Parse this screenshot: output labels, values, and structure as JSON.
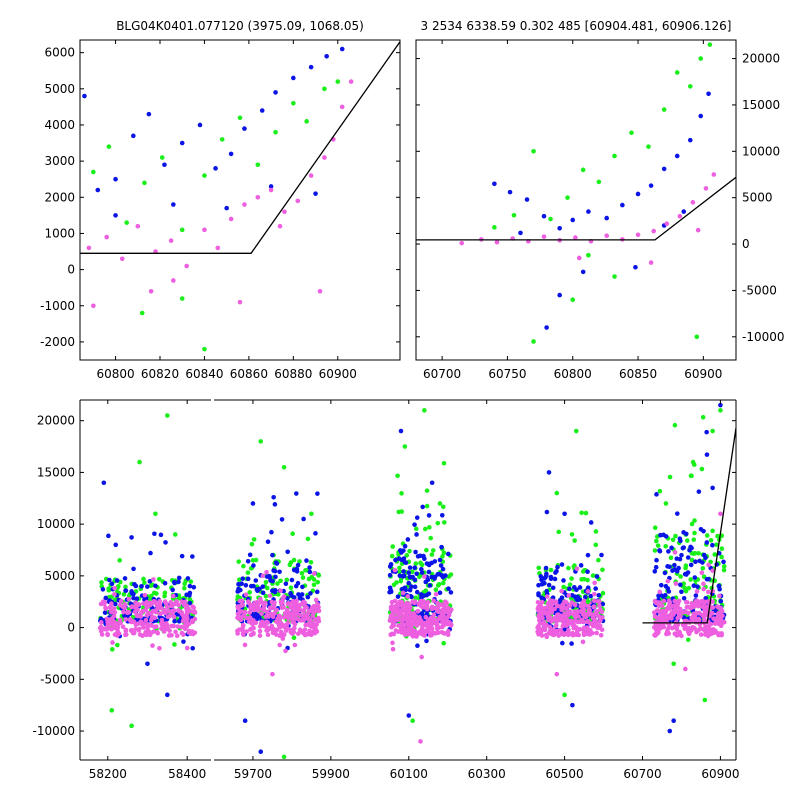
{
  "figure": {
    "title_left": "BLG04K0401.077120 (3975.09, 1068.05)",
    "title_right": "3 2534 6338.59 0.302 485 [60904.481, 60906.126]"
  },
  "colors": {
    "blue": "#0a14e6",
    "green": "#19f019",
    "magenta": "#ee5fe0"
  },
  "chart_data": [
    {
      "name": "top-left",
      "type": "scatter",
      "xlim": [
        60784,
        60928
      ],
      "ylim": [
        -2500,
        6350
      ],
      "xticks": [
        60800,
        60820,
        60840,
        60860,
        60880,
        60900
      ],
      "yticks": [
        -2000,
        -1000,
        0,
        1000,
        2000,
        3000,
        4000,
        5000,
        6000
      ],
      "y_axis_side": "left",
      "model_line": [
        [
          60784,
          450
        ],
        [
          60861,
          450
        ],
        [
          60928,
          6300
        ]
      ],
      "series": [
        {
          "name": "blue",
          "color": "#0a14e6",
          "points": [
            [
              60786,
              4800
            ],
            [
              60792,
              2200
            ],
            [
              60800,
              2500
            ],
            [
              60808,
              3700
            ],
            [
              60815,
              4300
            ],
            [
              60822,
              2900
            ],
            [
              60830,
              3500
            ],
            [
              60838,
              4000
            ],
            [
              60845,
              2800
            ],
            [
              60852,
              3200
            ],
            [
              60858,
              3900
            ],
            [
              60866,
              4400
            ],
            [
              60872,
              4900
            ],
            [
              60880,
              5300
            ],
            [
              60888,
              5600
            ],
            [
              60895,
              5900
            ],
            [
              60902,
              6100
            ],
            [
              60800,
              1500
            ],
            [
              60826,
              1800
            ],
            [
              60850,
              1700
            ],
            [
              60870,
              2300
            ],
            [
              60890,
              2100
            ]
          ]
        },
        {
          "name": "green",
          "color": "#19f019",
          "points": [
            [
              60790,
              2700
            ],
            [
              60797,
              3400
            ],
            [
              60805,
              1300
            ],
            [
              60813,
              2400
            ],
            [
              60821,
              3100
            ],
            [
              60830,
              1100
            ],
            [
              60840,
              2600
            ],
            [
              60848,
              3600
            ],
            [
              60856,
              4200
            ],
            [
              60864,
              2900
            ],
            [
              60872,
              3800
            ],
            [
              60880,
              4600
            ],
            [
              60886,
              4100
            ],
            [
              60894,
              5000
            ],
            [
              60900,
              5200
            ],
            [
              60840,
              -2200
            ],
            [
              60812,
              -1200
            ],
            [
              60830,
              -800
            ]
          ]
        },
        {
          "name": "magenta",
          "color": "#ee5fe0",
          "points": [
            [
              60788,
              600
            ],
            [
              60796,
              900
            ],
            [
              60803,
              300
            ],
            [
              60810,
              1200
            ],
            [
              60818,
              500
            ],
            [
              60825,
              800
            ],
            [
              60832,
              100
            ],
            [
              60840,
              1100
            ],
            [
              60846,
              600
            ],
            [
              60852,
              1400
            ],
            [
              60858,
              1800
            ],
            [
              60864,
              2000
            ],
            [
              60870,
              2200
            ],
            [
              60876,
              1600
            ],
            [
              60882,
              1900
            ],
            [
              60888,
              2600
            ],
            [
              60894,
              3100
            ],
            [
              60898,
              3600
            ],
            [
              60902,
              4500
            ],
            [
              60906,
              5200
            ],
            [
              60790,
              -1000
            ],
            [
              60816,
              -600
            ],
            [
              60856,
              -900
            ],
            [
              60892,
              -600
            ],
            [
              60826,
              -300
            ],
            [
              60874,
              1200
            ]
          ]
        }
      ]
    },
    {
      "name": "top-right",
      "type": "scatter",
      "xlim": [
        60680,
        60925
      ],
      "ylim": [
        -12500,
        22000
      ],
      "xticks": [
        60700,
        60750,
        60800,
        60850,
        60900
      ],
      "yticks": [
        -10000,
        -5000,
        0,
        5000,
        10000,
        15000,
        20000
      ],
      "y_axis_side": "right",
      "model_line": [
        [
          60680,
          450
        ],
        [
          60863,
          450
        ],
        [
          60925,
          7200
        ]
      ],
      "series": [
        {
          "name": "blue",
          "color": "#0a14e6",
          "points": [
            [
              60740,
              6500
            ],
            [
              60752,
              5600
            ],
            [
              60765,
              4800
            ],
            [
              60778,
              3000
            ],
            [
              60790,
              1700
            ],
            [
              60800,
              2600
            ],
            [
              60812,
              3500
            ],
            [
              60826,
              2800
            ],
            [
              60838,
              4200
            ],
            [
              60850,
              5400
            ],
            [
              60860,
              6300
            ],
            [
              60870,
              8100
            ],
            [
              60880,
              9500
            ],
            [
              60890,
              11200
            ],
            [
              60898,
              13800
            ],
            [
              60904,
              16200
            ],
            [
              60780,
              -9000
            ],
            [
              60790,
              -5500
            ],
            [
              60808,
              -3000
            ],
            [
              60848,
              -2500
            ],
            [
              60870,
              2000
            ],
            [
              60885,
              3500
            ],
            [
              60760,
              1200
            ]
          ]
        },
        {
          "name": "green",
          "color": "#19f019",
          "points": [
            [
              60740,
              1800
            ],
            [
              60755,
              3100
            ],
            [
              60770,
              10000
            ],
            [
              60783,
              2700
            ],
            [
              60796,
              5000
            ],
            [
              60808,
              8000
            ],
            [
              60820,
              6700
            ],
            [
              60832,
              9500
            ],
            [
              60845,
              12000
            ],
            [
              60858,
              10500
            ],
            [
              60870,
              14500
            ],
            [
              60880,
              18500
            ],
            [
              60890,
              17000
            ],
            [
              60898,
              20000
            ],
            [
              60905,
              21500
            ],
            [
              60770,
              -10500
            ],
            [
              60800,
              -6000
            ],
            [
              60832,
              -3500
            ],
            [
              60895,
              -10000
            ],
            [
              60812,
              -1200
            ]
          ]
        },
        {
          "name": "magenta",
          "color": "#ee5fe0",
          "points": [
            [
              60730,
              500
            ],
            [
              60742,
              200
            ],
            [
              60754,
              600
            ],
            [
              60766,
              300
            ],
            [
              60778,
              800
            ],
            [
              60790,
              400
            ],
            [
              60802,
              700
            ],
            [
              60814,
              300
            ],
            [
              60826,
              900
            ],
            [
              60838,
              500
            ],
            [
              60850,
              1000
            ],
            [
              60862,
              1400
            ],
            [
              60872,
              2200
            ],
            [
              60882,
              3000
            ],
            [
              60892,
              4500
            ],
            [
              60902,
              6000
            ],
            [
              60908,
              7500
            ],
            [
              60805,
              -1500
            ],
            [
              60860,
              -2000
            ],
            [
              60896,
              1500
            ],
            [
              60715,
              100
            ]
          ]
        }
      ]
    },
    {
      "name": "bottom",
      "type": "scatter",
      "panels": [
        {
          "xlim": [
            58130,
            58460
          ],
          "xticks": [
            58200,
            58400
          ]
        },
        {
          "xlim": [
            59600,
            60940
          ],
          "xticks": [
            59700,
            59900,
            60100,
            60300,
            60500,
            60700,
            60900
          ]
        }
      ],
      "ylim": [
        -12800,
        22000
      ],
      "yticks": [
        -10000,
        -5000,
        0,
        5000,
        10000,
        15000,
        20000
      ],
      "model_line": [
        [
          60700,
          450
        ],
        [
          60866,
          450
        ],
        [
          60940,
          19300
        ]
      ],
      "clusters": [
        {
          "x_range": [
            58180,
            58420
          ],
          "spread": 4200,
          "color_mix": "blue,green,magenta"
        },
        {
          "x_range": [
            59660,
            59870
          ],
          "spread": 6000,
          "color_mix": "blue,green,magenta"
        },
        {
          "x_range": [
            60050,
            60210
          ],
          "spread": 7000,
          "color_mix": "blue,green,magenta"
        },
        {
          "x_range": [
            60430,
            60600
          ],
          "spread": 5500,
          "color_mix": "blue,green,magenta"
        },
        {
          "x_range": [
            60730,
            60910
          ],
          "spread": 9000,
          "color_mix": "blue,green,magenta"
        }
      ],
      "series": [
        {
          "name": "blue",
          "color": "#0a14e6",
          "points": [
            [
              58190,
              14000
            ],
            [
              58220,
              8000
            ],
            [
              58260,
              3500
            ],
            [
              58300,
              -3500
            ],
            [
              58350,
              -6500
            ],
            [
              58380,
              4800
            ],
            [
              59700,
              12000
            ],
            [
              59750,
              7000
            ],
            [
              59800,
              4600
            ],
            [
              59830,
              10500
            ],
            [
              59680,
              -9000
            ],
            [
              59720,
              -12000
            ],
            [
              60080,
              19000
            ],
            [
              60120,
              9000
            ],
            [
              60160,
              14000
            ],
            [
              60190,
              5000
            ],
            [
              60100,
              -8500
            ],
            [
              60460,
              15000
            ],
            [
              60500,
              11000
            ],
            [
              60560,
              7000
            ],
            [
              60520,
              -7500
            ],
            [
              60760,
              4000
            ],
            [
              60800,
              7000
            ],
            [
              60850,
              9500
            ],
            [
              60880,
              13500
            ],
            [
              60900,
              21500
            ],
            [
              60780,
              -9000
            ],
            [
              60770,
              -10000
            ]
          ]
        },
        {
          "name": "green",
          "color": "#19f019",
          "points": [
            [
              58280,
              16000
            ],
            [
              58320,
              11000
            ],
            [
              58350,
              20500
            ],
            [
              58230,
              6500
            ],
            [
              58370,
              9000
            ],
            [
              58210,
              -8000
            ],
            [
              58260,
              -9500
            ],
            [
              59720,
              18000
            ],
            [
              59780,
              15500
            ],
            [
              59850,
              11000
            ],
            [
              59700,
              6500
            ],
            [
              59780,
              -12500
            ],
            [
              60090,
              17500
            ],
            [
              60140,
              21000
            ],
            [
              60180,
              12000
            ],
            [
              60110,
              -9000
            ],
            [
              60480,
              13000
            ],
            [
              60530,
              19000
            ],
            [
              60580,
              8000
            ],
            [
              60500,
              -6500
            ],
            [
              60560,
              2500
            ],
            [
              60760,
              12000
            ],
            [
              60830,
              16000
            ],
            [
              60880,
              19000
            ],
            [
              60900,
              21000
            ],
            [
              60780,
              -3500
            ],
            [
              60860,
              -7000
            ]
          ]
        },
        {
          "name": "magenta",
          "color": "#ee5fe0",
          "points": [
            [
              58200,
              500
            ],
            [
              58250,
              1500
            ],
            [
              58300,
              0
            ],
            [
              58350,
              2000
            ],
            [
              58400,
              800
            ],
            [
              58330,
              -2000
            ],
            [
              59680,
              1500
            ],
            [
              59720,
              2500
            ],
            [
              59780,
              3000
            ],
            [
              59830,
              1000
            ],
            [
              59860,
              2000
            ],
            [
              59750,
              -4500
            ],
            [
              60060,
              1500
            ],
            [
              60110,
              2500
            ],
            [
              60160,
              2000
            ],
            [
              60200,
              1000
            ],
            [
              60130,
              -11000
            ],
            [
              60440,
              1500
            ],
            [
              60500,
              2500
            ],
            [
              60560,
              3500
            ],
            [
              60590,
              1000
            ],
            [
              60480,
              -4500
            ],
            [
              60740,
              500
            ],
            [
              60790,
              2000
            ],
            [
              60840,
              3500
            ],
            [
              60880,
              5500
            ],
            [
              60900,
              11000
            ],
            [
              60810,
              -4000
            ]
          ]
        }
      ]
    }
  ]
}
